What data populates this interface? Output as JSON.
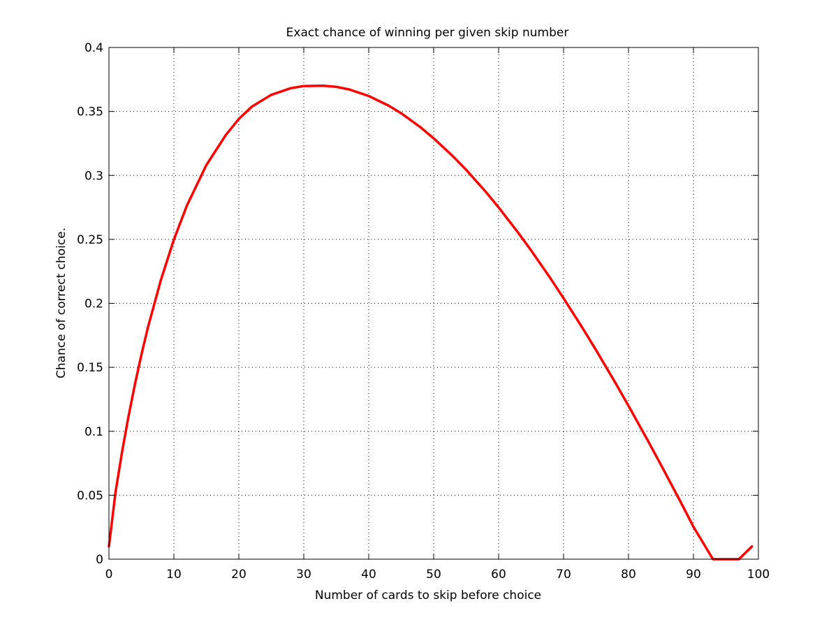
{
  "chart_data": {
    "type": "line",
    "title": "Exact chance of winning per given skip number",
    "xlabel": "Number of cards to skip before choice",
    "ylabel": "Chance of correct choice.",
    "xlim": [
      0,
      100
    ],
    "ylim": [
      0,
      0.4
    ],
    "xticks": [
      0,
      10,
      20,
      30,
      40,
      50,
      60,
      70,
      80,
      90,
      100
    ],
    "yticks": [
      0,
      0.05,
      0.1,
      0.15,
      0.2,
      0.25,
      0.3,
      0.35,
      0.4
    ],
    "xtick_labels": [
      "0",
      "10",
      "20",
      "30",
      "40",
      "50",
      "60",
      "70",
      "80",
      "90",
      "100"
    ],
    "ytick_labels": [
      "0",
      "0.05",
      "0.1",
      "0.15",
      "0.2",
      "0.25",
      "0.3",
      "0.35",
      "0.4"
    ],
    "grid": true,
    "legend": "none",
    "series": [
      {
        "color": "#ff0000",
        "x": [
          0,
          1,
          2,
          3,
          4,
          5,
          6,
          8,
          10,
          12,
          15,
          18,
          20,
          22,
          25,
          28,
          30,
          33,
          35,
          37,
          40,
          43,
          45,
          48,
          50,
          53,
          55,
          58,
          60,
          63,
          65,
          68,
          70,
          73,
          75,
          78,
          80,
          83,
          85,
          88,
          90,
          93,
          95,
          97,
          99
        ],
        "y": [
          0.01,
          0.0519,
          0.0832,
          0.1113,
          0.1367,
          0.1599,
          0.1811,
          0.2183,
          0.2498,
          0.2764,
          0.3081,
          0.3316,
          0.3442,
          0.3537,
          0.363,
          0.3682,
          0.3699,
          0.3701,
          0.3692,
          0.3672,
          0.3621,
          0.3547,
          0.3486,
          0.3375,
          0.329,
          0.3148,
          0.3044,
          0.2873,
          0.275,
          0.2553,
          0.2414,
          0.2194,
          0.204,
          0.1801,
          0.1635,
          0.1377,
          0.1199,
          0.0925,
          0.0737,
          0.045,
          0.0253,
          -0.0045,
          -0.0245,
          -0.0437,
          0.01
        ]
      }
    ]
  }
}
